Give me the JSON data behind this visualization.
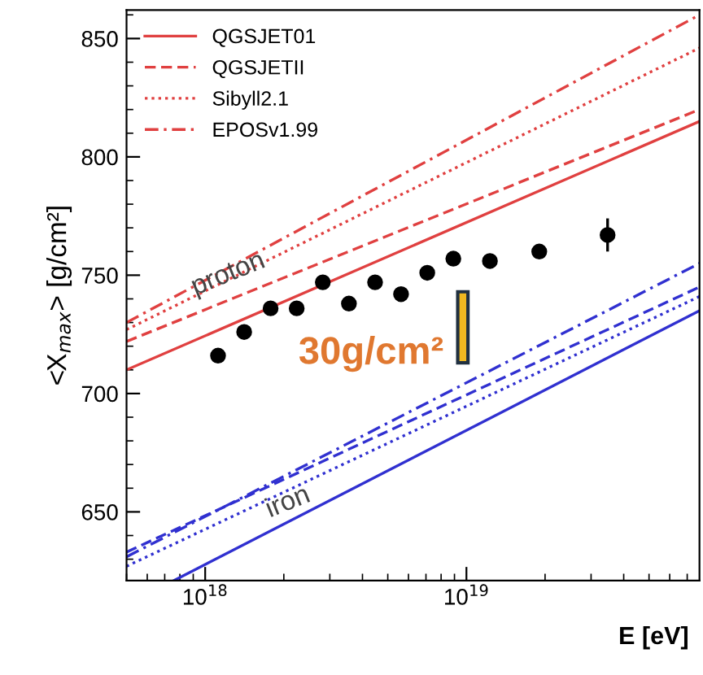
{
  "chart_data": {
    "type": "line",
    "ylabel": "<X$_{max}$> [g/cm²]",
    "xlabel": "E [eV]",
    "log": "x",
    "xlim": [
      5e+17,
      7.8e+19
    ],
    "ylim": [
      621,
      862
    ],
    "xticks": [
      {
        "value": 1e+18,
        "label": "10$^{18}$"
      },
      {
        "value": 1e+19,
        "label": "10$^{19}$"
      }
    ],
    "yticks": [
      650,
      700,
      750,
      800,
      850
    ],
    "grid": false,
    "legend": "top left",
    "annotations": [
      "proton",
      "iron",
      "30g/cm²"
    ],
    "series": [
      {
        "name": "QGSJET01",
        "color": "#e04040",
        "line_style": "solid",
        "x": [
          5e+17,
          7.8e+19
        ],
        "values": [
          710,
          815
        ]
      },
      {
        "name": "QGSJETII",
        "color": "#e04040",
        "line_style": "dashed",
        "x": [
          5e+17,
          7.8e+19
        ],
        "values": [
          722,
          820
        ]
      },
      {
        "name": "Sibyll2.1",
        "color": "#e04040",
        "line_style": "dotted",
        "x": [
          5e+17,
          7.8e+19
        ],
        "values": [
          727,
          846
        ]
      },
      {
        "name": "EPOSv1.99",
        "color": "#e04040",
        "line_style": "dashdot",
        "x": [
          5e+17,
          7.8e+19
        ],
        "values": [
          730,
          860
        ]
      },
      {
        "color": "#3030d0",
        "line_style": "solid",
        "x": [
          7.6e+17,
          7.8e+19
        ],
        "values": [
          621,
          735
        ]
      },
      {
        "color": "#3030d0",
        "line_style": "dashed",
        "x": [
          5e+17,
          7.8e+19
        ],
        "values": [
          633,
          745
        ]
      },
      {
        "color": "#3030d0",
        "line_style": "dotted",
        "x": [
          5e+17,
          7.8e+19
        ],
        "values": [
          627,
          741
        ]
      },
      {
        "color": "#3030d0",
        "line_style": "dashdot",
        "x": [
          5e+17,
          7.8e+19
        ],
        "values": [
          631,
          755
        ]
      },
      {
        "type": "bar",
        "color": "#f0b820",
        "x": [
          9.7e+18
        ],
        "base": [
          713
        ],
        "values": [
          30
        ]
      },
      {
        "type": "scatter",
        "color": "#000000",
        "marker": "circle",
        "x": [
          1.12e+18,
          1.41e+18,
          1.78e+18,
          2.24e+18,
          2.82e+18,
          3.55e+18,
          4.47e+18,
          5.62e+18,
          7.08e+18,
          8.91e+18,
          1.23e+19,
          1.9e+19,
          3.47e+19
        ],
        "values": [
          716,
          726,
          736,
          736,
          747,
          738,
          747,
          742,
          751,
          757,
          756,
          760,
          767
        ],
        "errors": [
          null,
          null,
          null,
          null,
          null,
          null,
          null,
          null,
          null,
          null,
          null,
          null,
          7
        ]
      }
    ]
  }
}
